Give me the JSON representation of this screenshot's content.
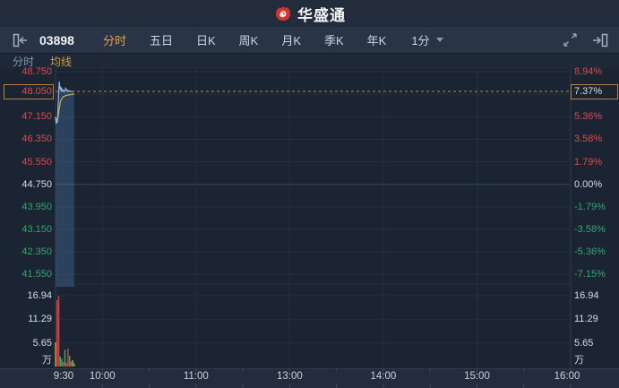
{
  "header": {
    "logo_text": "华盛通"
  },
  "toolbar": {
    "stock_code": "03898",
    "tabs": [
      {
        "label": "分时",
        "active": true
      },
      {
        "label": "五日",
        "active": false
      },
      {
        "label": "日K",
        "active": false
      },
      {
        "label": "周K",
        "active": false
      },
      {
        "label": "月K",
        "active": false
      },
      {
        "label": "季K",
        "active": false
      },
      {
        "label": "年K",
        "active": false
      }
    ],
    "period_selector": {
      "value": "1分"
    }
  },
  "legend": {
    "items": [
      {
        "label": "分时",
        "color": "#7d95b5"
      },
      {
        "label": "均线",
        "color": "#c9a144"
      }
    ]
  },
  "colors": {
    "accent_orange": "#c5862f",
    "up_red": "#d94b47",
    "down_green": "#33a56c",
    "neutral_text": "#d6dce4",
    "price_line": "#8cb8e8",
    "area_fill": "rgba(86,133,188,0.30)",
    "ma_line": "#d2ae4a",
    "vol_red": "#cf3b3e",
    "vol_green": "#35a463",
    "vol_yellow": "#b0993a",
    "grid": "#242f40",
    "grid_zero": "#3b4a5f",
    "plot_border": "#2e3a4c",
    "logo_red": "#d5342b"
  },
  "chart_data": {
    "type": "line",
    "subtype": "intraday-price-with-volume",
    "title": "03898 分时 (intraday)",
    "prev_close": 44.75,
    "current_price_label": "48.050",
    "current_change_label": "7.37%",
    "session_minutes": 330,
    "x_axis": {
      "ticks": [
        {
          "label": "9:30",
          "t": 0
        },
        {
          "label": "10:00",
          "t": 30
        },
        {
          "label": "11:00",
          "t": 90
        },
        {
          "label": "13:00",
          "t": 150
        },
        {
          "label": "14:00",
          "t": 210
        },
        {
          "label": "15:00",
          "t": 270
        },
        {
          "label": "16:00",
          "t": 330
        }
      ],
      "hour_gridlines_t": [
        30,
        90,
        150,
        210,
        270
      ],
      "minor_tick_step": 30
    },
    "price_axis": {
      "gridlines": [
        48.75,
        47.95,
        47.15,
        46.35,
        45.55,
        44.75,
        43.95,
        43.15,
        42.35,
        41.55
      ],
      "labels": [
        {
          "text": "48.750",
          "price": 48.75,
          "color": "up"
        },
        {
          "text": "48.050",
          "price": 48.05,
          "color": "up",
          "boxed": true
        },
        {
          "text": "47.150",
          "price": 47.15,
          "color": "up"
        },
        {
          "text": "46.350",
          "price": 46.35,
          "color": "up"
        },
        {
          "text": "45.550",
          "price": 45.55,
          "color": "up"
        },
        {
          "text": "44.750",
          "price": 44.75,
          "color": "neutral"
        },
        {
          "text": "43.950",
          "price": 43.95,
          "color": "down"
        },
        {
          "text": "43.150",
          "price": 43.15,
          "color": "down"
        },
        {
          "text": "42.350",
          "price": 42.35,
          "color": "down"
        },
        {
          "text": "41.550",
          "price": 41.55,
          "color": "down"
        }
      ]
    },
    "percent_axis": {
      "labels": [
        {
          "text": "8.94%",
          "price": 48.75,
          "color": "up"
        },
        {
          "text": "7.37%",
          "price": 48.05,
          "color": "neutral",
          "boxed": true
        },
        {
          "text": "5.36%",
          "price": 47.15,
          "color": "up"
        },
        {
          "text": "3.58%",
          "price": 46.35,
          "color": "up"
        },
        {
          "text": "1.79%",
          "price": 45.55,
          "color": "up"
        },
        {
          "text": "0.00%",
          "price": 44.75,
          "color": "neutral"
        },
        {
          "text": "-1.79%",
          "price": 43.95,
          "color": "down"
        },
        {
          "text": "-3.58%",
          "price": 43.15,
          "color": "down"
        },
        {
          "text": "-5.36%",
          "price": 42.35,
          "color": "down"
        },
        {
          "text": "-7.15%",
          "price": 41.55,
          "color": "down"
        }
      ]
    },
    "volume_axis": {
      "unit_label": "万",
      "labels": [
        {
          "text": "16.94",
          "value": 16.94
        },
        {
          "text": "11.29",
          "value": 11.29
        },
        {
          "text": "5.65",
          "value": 5.65
        }
      ]
    },
    "current_price_line": {
      "price": 48.05,
      "style": "dotted"
    },
    "series": [
      {
        "name": "分时",
        "color_key": "price_line",
        "points": [
          [
            0,
            47.15
          ],
          [
            0.4,
            46.9
          ],
          [
            0.8,
            47.05
          ],
          [
            1.2,
            46.95
          ],
          [
            1.6,
            47.5
          ],
          [
            2.0,
            48.0
          ],
          [
            2.4,
            48.4
          ],
          [
            2.8,
            48.12
          ],
          [
            3.2,
            48.22
          ],
          [
            3.6,
            48.05
          ],
          [
            4.0,
            48.14
          ],
          [
            4.5,
            48.06
          ],
          [
            5.0,
            48.1
          ],
          [
            5.5,
            48.04
          ],
          [
            6.0,
            48.08
          ],
          [
            6.5,
            48.16
          ],
          [
            7.0,
            48.1
          ],
          [
            7.5,
            48.06
          ],
          [
            8.0,
            48.09
          ],
          [
            8.5,
            48.05
          ],
          [
            9.0,
            48.07
          ],
          [
            9.5,
            48.05
          ],
          [
            10.0,
            48.06
          ],
          [
            10.5,
            48.05
          ],
          [
            11.0,
            48.05
          ],
          [
            11.5,
            48.05
          ],
          [
            12.0,
            48.05
          ]
        ]
      },
      {
        "name": "均线",
        "color_key": "ma_line",
        "points": [
          [
            0,
            47.15
          ],
          [
            0.5,
            47.05
          ],
          [
            1.0,
            47.0
          ],
          [
            1.5,
            47.1
          ],
          [
            2.0,
            47.3
          ],
          [
            2.5,
            47.5
          ],
          [
            3.0,
            47.65
          ],
          [
            3.5,
            47.74
          ],
          [
            4.0,
            47.8
          ],
          [
            5.0,
            47.86
          ],
          [
            6.0,
            47.89
          ],
          [
            7.0,
            47.91
          ],
          [
            8.0,
            47.92
          ],
          [
            9.0,
            47.93
          ],
          [
            10.0,
            47.94
          ],
          [
            11.0,
            47.95
          ],
          [
            12.0,
            47.95
          ]
        ]
      }
    ],
    "volume_bars": [
      [
        0,
        5.8,
        "y"
      ],
      [
        1,
        15.9,
        "r"
      ],
      [
        2,
        16.9,
        "r"
      ],
      [
        3,
        2.4,
        "g"
      ],
      [
        4,
        1.8,
        "g"
      ],
      [
        5,
        1.1,
        "r"
      ],
      [
        6,
        4.0,
        "g"
      ],
      [
        7,
        0.9,
        "r"
      ],
      [
        8,
        4.3,
        "r"
      ],
      [
        9,
        2.6,
        "g"
      ],
      [
        10,
        1.2,
        "r"
      ],
      [
        11,
        1.5,
        "y"
      ],
      [
        12,
        0.8,
        "g"
      ]
    ]
  }
}
